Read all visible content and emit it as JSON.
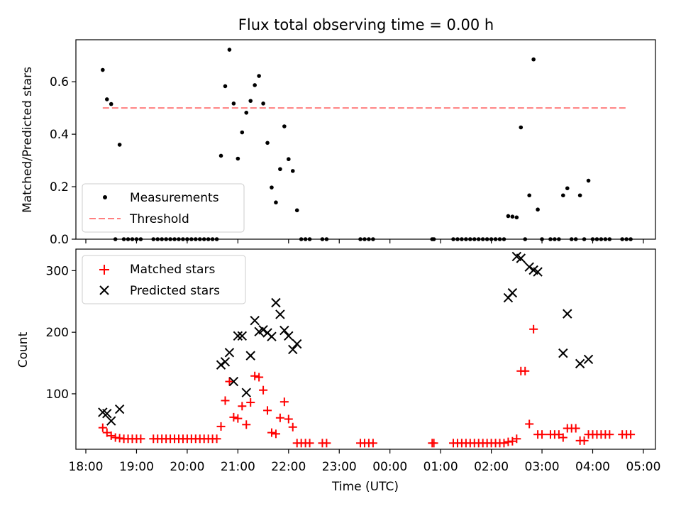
{
  "chart_data": [
    {
      "type": "scatter",
      "title": "Flux total observing time = 0.00 h",
      "xlabel": "",
      "ylabel": "Matched/Predicted stars",
      "ylim": [
        0,
        0.76
      ],
      "yticks": [
        "0.0",
        "0.2",
        "0.4",
        "0.6"
      ],
      "ytick_values": [
        0,
        0.2,
        0.4,
        0.6
      ],
      "legend_position": "lower-left",
      "colors": {
        "measurements": "#000000",
        "threshold": "#ff7f7f"
      },
      "threshold": {
        "name": "Threshold",
        "value": 0.5,
        "x": [
          "18:20",
          "04:40"
        ]
      },
      "series": [
        {
          "name": "Measurements",
          "marker": "dot",
          "points": [
            [
              "18:20",
              0.645
            ],
            [
              "18:25",
              0.533
            ],
            [
              "18:30",
              0.515
            ],
            [
              "18:35",
              0.0
            ],
            [
              "18:40",
              0.36
            ],
            [
              "18:45",
              0.0
            ],
            [
              "18:50",
              0.0
            ],
            [
              "18:55",
              0.0
            ],
            [
              "19:00",
              0.0
            ],
            [
              "19:05",
              0.0
            ],
            [
              "19:20",
              0.0
            ],
            [
              "19:25",
              0.0
            ],
            [
              "19:30",
              0.0
            ],
            [
              "19:35",
              0.0
            ],
            [
              "19:40",
              0.0
            ],
            [
              "19:45",
              0.0
            ],
            [
              "19:50",
              0.0
            ],
            [
              "19:55",
              0.0
            ],
            [
              "20:00",
              0.0
            ],
            [
              "20:05",
              0.0
            ],
            [
              "20:10",
              0.0
            ],
            [
              "20:15",
              0.0
            ],
            [
              "20:20",
              0.0
            ],
            [
              "20:25",
              0.0
            ],
            [
              "20:30",
              0.0
            ],
            [
              "20:35",
              0.0
            ],
            [
              "20:40",
              0.318
            ],
            [
              "20:45",
              0.583
            ],
            [
              "20:50",
              0.722
            ],
            [
              "20:55",
              0.517
            ],
            [
              "21:00",
              0.307
            ],
            [
              "21:05",
              0.407
            ],
            [
              "21:10",
              0.482
            ],
            [
              "21:15",
              0.527
            ],
            [
              "21:20",
              0.587
            ],
            [
              "21:25",
              0.622
            ],
            [
              "21:30",
              0.517
            ],
            [
              "21:35",
              0.367
            ],
            [
              "21:40",
              0.197
            ],
            [
              "21:45",
              0.14
            ],
            [
              "21:50",
              0.267
            ],
            [
              "21:55",
              0.43
            ],
            [
              "22:00",
              0.305
            ],
            [
              "22:05",
              0.26
            ],
            [
              "22:10",
              0.11
            ],
            [
              "22:15",
              0.0
            ],
            [
              "22:20",
              0.0
            ],
            [
              "22:25",
              0.0
            ],
            [
              "22:40",
              0.0
            ],
            [
              "22:45",
              0.0
            ],
            [
              "23:25",
              0.0
            ],
            [
              "23:30",
              0.0
            ],
            [
              "23:35",
              0.0
            ],
            [
              "23:40",
              0.0
            ],
            [
              "00:50",
              0.0
            ],
            [
              "00:52",
              0.0
            ],
            [
              "01:15",
              0.0
            ],
            [
              "01:20",
              0.0
            ],
            [
              "01:25",
              0.0
            ],
            [
              "01:30",
              0.0
            ],
            [
              "01:35",
              0.0
            ],
            [
              "01:40",
              0.0
            ],
            [
              "01:45",
              0.0
            ],
            [
              "01:50",
              0.0
            ],
            [
              "01:55",
              0.0
            ],
            [
              "02:00",
              0.0
            ],
            [
              "02:05",
              0.0
            ],
            [
              "02:10",
              0.0
            ],
            [
              "02:15",
              0.0
            ],
            [
              "02:20",
              0.088
            ],
            [
              "02:25",
              0.086
            ],
            [
              "02:30",
              0.083
            ],
            [
              "02:35",
              0.426
            ],
            [
              "02:40",
              0.0
            ],
            [
              "02:45",
              0.167
            ],
            [
              "02:50",
              0.685
            ],
            [
              "02:55",
              0.113
            ],
            [
              "03:00",
              0.0
            ],
            [
              "03:10",
              0.0
            ],
            [
              "03:15",
              0.0
            ],
            [
              "03:20",
              0.0
            ],
            [
              "03:25",
              0.167
            ],
            [
              "03:30",
              0.194
            ],
            [
              "03:35",
              0.0
            ],
            [
              "03:40",
              0.0
            ],
            [
              "03:45",
              0.167
            ],
            [
              "03:50",
              0.0
            ],
            [
              "03:55",
              0.223
            ],
            [
              "04:00",
              0.0
            ],
            [
              "04:05",
              0.0
            ],
            [
              "04:10",
              0.0
            ],
            [
              "04:15",
              0.0
            ],
            [
              "04:20",
              0.0
            ],
            [
              "04:35",
              0.0
            ],
            [
              "04:40",
              0.0
            ],
            [
              "04:45",
              0.0
            ]
          ]
        }
      ]
    },
    {
      "type": "scatter",
      "title": "",
      "xlabel": "Time (UTC)",
      "ylabel": "Count",
      "ylim": [
        10,
        335
      ],
      "yticks": [
        "100",
        "200",
        "300"
      ],
      "ytick_values": [
        100,
        200,
        300
      ],
      "xticks": [
        "18:00",
        "19:00",
        "20:00",
        "21:00",
        "22:00",
        "23:00",
        "00:00",
        "01:00",
        "02:00",
        "03:00",
        "04:00",
        "05:00"
      ],
      "legend_position": "upper-left",
      "colors": {
        "matched": "#ff0000",
        "predicted": "#000000"
      },
      "series": [
        {
          "name": "Matched stars",
          "marker": "plus",
          "points": [
            [
              "18:20",
              45
            ],
            [
              "18:25",
              37
            ],
            [
              "18:30",
              32
            ],
            [
              "18:35",
              29
            ],
            [
              "18:40",
              28
            ],
            [
              "18:45",
              27
            ],
            [
              "18:50",
              27
            ],
            [
              "18:55",
              27
            ],
            [
              "19:00",
              27
            ],
            [
              "19:05",
              27
            ],
            [
              "19:20",
              27
            ],
            [
              "19:25",
              27
            ],
            [
              "19:30",
              27
            ],
            [
              "19:35",
              27
            ],
            [
              "19:40",
              27
            ],
            [
              "19:45",
              27
            ],
            [
              "19:50",
              27
            ],
            [
              "19:55",
              27
            ],
            [
              "20:00",
              27
            ],
            [
              "20:05",
              27
            ],
            [
              "20:10",
              27
            ],
            [
              "20:15",
              27
            ],
            [
              "20:20",
              27
            ],
            [
              "20:25",
              27
            ],
            [
              "20:30",
              27
            ],
            [
              "20:35",
              27
            ],
            [
              "20:40",
              47
            ],
            [
              "20:45",
              89
            ],
            [
              "20:50",
              120
            ],
            [
              "20:55",
              62
            ],
            [
              "21:00",
              60
            ],
            [
              "21:05",
              80
            ],
            [
              "21:10",
              50
            ],
            [
              "21:15",
              86
            ],
            [
              "21:20",
              129
            ],
            [
              "21:25",
              127
            ],
            [
              "21:30",
              106
            ],
            [
              "21:35",
              73
            ],
            [
              "21:40",
              37
            ],
            [
              "21:45",
              35
            ],
            [
              "21:50",
              61
            ],
            [
              "21:55",
              87
            ],
            [
              "22:00",
              59
            ],
            [
              "22:05",
              46
            ],
            [
              "22:10",
              20
            ],
            [
              "22:15",
              20
            ],
            [
              "22:20",
              20
            ],
            [
              "22:25",
              20
            ],
            [
              "22:40",
              20
            ],
            [
              "22:45",
              20
            ],
            [
              "23:25",
              20
            ],
            [
              "23:30",
              20
            ],
            [
              "23:35",
              20
            ],
            [
              "23:40",
              20
            ],
            [
              "00:50",
              20
            ],
            [
              "00:52",
              20
            ],
            [
              "01:15",
              20
            ],
            [
              "01:20",
              20
            ],
            [
              "01:25",
              20
            ],
            [
              "01:30",
              20
            ],
            [
              "01:35",
              20
            ],
            [
              "01:40",
              20
            ],
            [
              "01:45",
              20
            ],
            [
              "01:50",
              20
            ],
            [
              "01:55",
              20
            ],
            [
              "02:00",
              20
            ],
            [
              "02:05",
              20
            ],
            [
              "02:10",
              20
            ],
            [
              "02:15",
              20
            ],
            [
              "02:20",
              22
            ],
            [
              "02:25",
              23
            ],
            [
              "02:30",
              27
            ],
            [
              "02:35",
              137
            ],
            [
              "02:40",
              137
            ],
            [
              "02:45",
              51
            ],
            [
              "02:50",
              205
            ],
            [
              "02:55",
              34
            ],
            [
              "03:00",
              34
            ],
            [
              "03:10",
              34
            ],
            [
              "03:15",
              34
            ],
            [
              "03:20",
              34
            ],
            [
              "03:25",
              29
            ],
            [
              "03:30",
              44
            ],
            [
              "03:35",
              44
            ],
            [
              "03:40",
              44
            ],
            [
              "03:45",
              24
            ],
            [
              "03:50",
              24
            ],
            [
              "03:55",
              34
            ],
            [
              "04:00",
              34
            ],
            [
              "04:05",
              34
            ],
            [
              "04:10",
              34
            ],
            [
              "04:15",
              34
            ],
            [
              "04:20",
              34
            ],
            [
              "04:35",
              34
            ],
            [
              "04:40",
              34
            ],
            [
              "04:45",
              34
            ]
          ]
        },
        {
          "name": "Predicted stars",
          "marker": "x",
          "points": [
            [
              "18:20",
              70
            ],
            [
              "18:25",
              68
            ],
            [
              "18:30",
              56
            ],
            [
              "18:40",
              75
            ],
            [
              "20:40",
              147
            ],
            [
              "20:45",
              152
            ],
            [
              "20:50",
              167
            ],
            [
              "20:55",
              120
            ],
            [
              "21:00",
              194
            ],
            [
              "21:05",
              194
            ],
            [
              "21:10",
              102
            ],
            [
              "21:15",
              162
            ],
            [
              "21:20",
              219
            ],
            [
              "21:25",
              201
            ],
            [
              "21:30",
              204
            ],
            [
              "21:35",
              199
            ],
            [
              "21:40",
              193
            ],
            [
              "21:45",
              248
            ],
            [
              "21:50",
              229
            ],
            [
              "21:55",
              203
            ],
            [
              "22:00",
              194
            ],
            [
              "22:05",
              172
            ],
            [
              "22:10",
              181
            ],
            [
              "02:20",
              256
            ],
            [
              "02:25",
              264
            ],
            [
              "02:30",
              323
            ],
            [
              "02:35",
              320
            ],
            [
              "02:45",
              306
            ],
            [
              "02:50",
              301
            ],
            [
              "02:55",
              298
            ],
            [
              "03:25",
              166
            ],
            [
              "03:30",
              230
            ],
            [
              "03:45",
              149
            ],
            [
              "03:55",
              156
            ]
          ]
        }
      ]
    }
  ]
}
